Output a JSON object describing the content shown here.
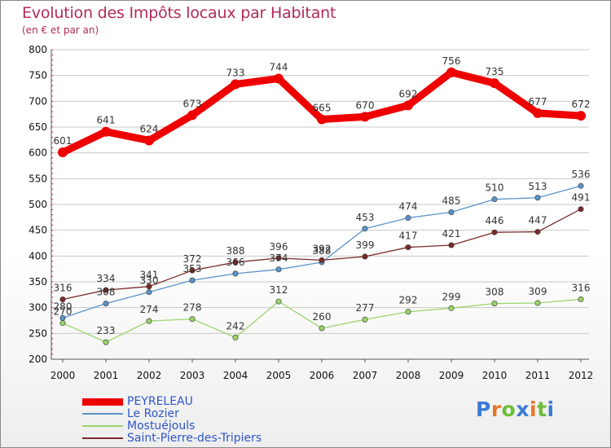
{
  "header": {
    "title": "Evolution des Impôts locaux par Habitant",
    "subtitle": "(en € et par an)"
  },
  "logo": {
    "text": "Proxiti",
    "colors": [
      "#3a7bd5",
      "#e8762b",
      "#6cbf3a",
      "#3a7bd5",
      "#e8762b",
      "#6cbf3a",
      "#3a7bd5"
    ]
  },
  "chart_data": {
    "type": "line",
    "categories": [
      "2000",
      "2001",
      "2002",
      "2003",
      "2004",
      "2005",
      "2006",
      "2007",
      "2008",
      "2009",
      "2010",
      "2011",
      "2012"
    ],
    "ylim": [
      200,
      800
    ],
    "yticks": [
      200,
      250,
      300,
      350,
      400,
      450,
      500,
      550,
      600,
      650,
      700,
      750,
      800
    ],
    "grid": "horizontal",
    "legend_position": "bottom-left",
    "series": [
      {
        "name": "PEYRELEAU",
        "color": "#ee0000",
        "values": [
          601,
          641,
          624,
          673,
          733,
          744,
          665,
          670,
          692,
          756,
          735,
          677,
          672
        ],
        "labels": [
          "601",
          "641",
          "624",
          "673",
          "733",
          "744",
          "665",
          "670",
          "692",
          "756",
          "735",
          "677",
          "672"
        ]
      },
      {
        "name": "Le Rozier",
        "color": "#5a94c9",
        "values": [
          280,
          308,
          330,
          353,
          366,
          374,
          388,
          453,
          474,
          485,
          510,
          513,
          536
        ],
        "labels": [
          "280",
          "308",
          "330",
          "353",
          "366",
          "374",
          "388",
          "453",
          "474",
          "485",
          "510",
          "513",
          "536"
        ]
      },
      {
        "name": "Mostuéjouls",
        "color": "#9bd46b",
        "values": [
          270,
          233,
          274,
          278,
          242,
          312,
          260,
          277,
          292,
          299,
          308,
          309,
          316
        ],
        "labels": [
          "270",
          "233",
          "274",
          "278",
          "242",
          "312",
          "260",
          "277",
          "292",
          "299",
          "308",
          "309",
          "316"
        ]
      },
      {
        "name": "Saint-Pierre-des-Tripiers",
        "color": "#7a2a2a",
        "values": [
          316,
          334,
          341,
          372,
          388,
          396,
          392,
          399,
          417,
          421,
          446,
          447,
          491
        ],
        "labels": [
          "316",
          "334",
          "341",
          "372",
          "388",
          "396",
          "392",
          "399",
          "417",
          "421",
          "446",
          "447",
          "491"
        ]
      }
    ]
  }
}
